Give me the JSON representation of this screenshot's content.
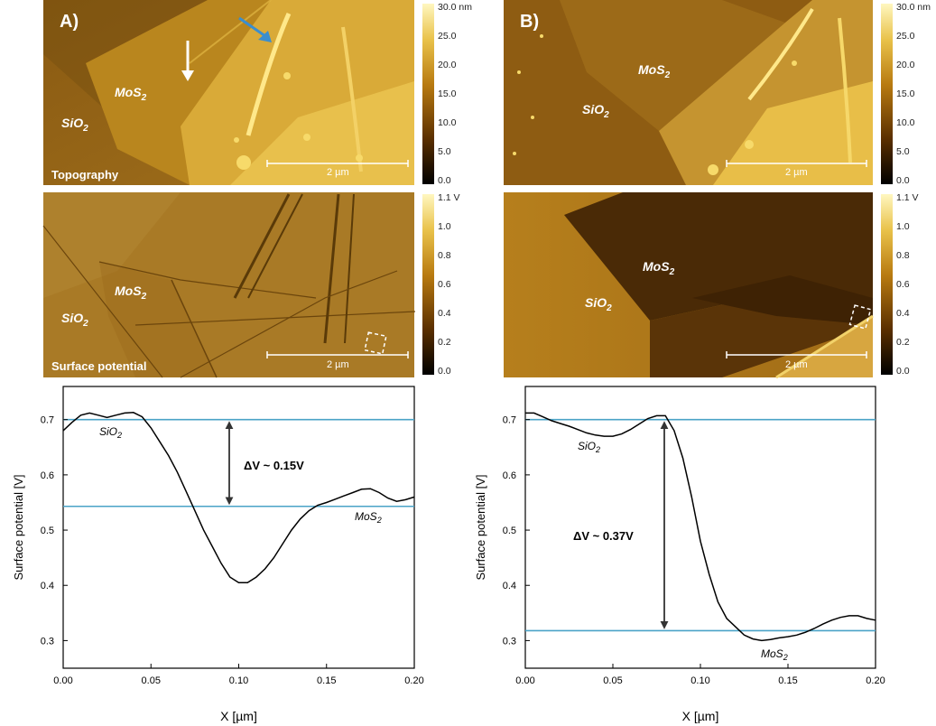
{
  "panels": {
    "A": {
      "panel_label": "A)",
      "topography": {
        "caption": "Topography",
        "scalebar": "2 µm",
        "mos2": "MoS",
        "mos2_sub": "2",
        "sio2": "SiO",
        "sio2_sub": "2",
        "colorbar_ticks": [
          "30.0 nm",
          "25.0",
          "20.0",
          "15.0",
          "10.0",
          "5.0",
          "0.0"
        ]
      },
      "potential": {
        "caption": "Surface potential",
        "scalebar": "2 µm",
        "mos2": "MoS",
        "mos2_sub": "2",
        "sio2": "SiO",
        "sio2_sub": "2",
        "colorbar_ticks": [
          "1.1 V",
          "1.0",
          "0.8",
          "0.6",
          "0.4",
          "0.2",
          "0.0"
        ]
      }
    },
    "B": {
      "panel_label": "B)",
      "topography": {
        "scalebar": "2 µm",
        "mos2": "MoS",
        "mos2_sub": "2",
        "sio2": "SiO",
        "sio2_sub": "2",
        "colorbar_ticks": [
          "30.0 nm",
          "25.0",
          "20.0",
          "15.0",
          "10.0",
          "5.0",
          "0.0"
        ]
      },
      "potential": {
        "scalebar": "2 µm",
        "mos2": "MoS",
        "mos2_sub": "2",
        "sio2": "SiO",
        "sio2_sub": "2",
        "colorbar_ticks": [
          "1.1 V",
          "1.0",
          "0.8",
          "0.6",
          "0.4",
          "0.2",
          "0.0"
        ]
      }
    }
  },
  "chart_data": [
    {
      "type": "line",
      "xlabel": "X [µm]",
      "ylabel": "Surface potential [V]",
      "xlim": [
        0.0,
        0.2
      ],
      "ylim": [
        0.25,
        0.76
      ],
      "xticks": [
        "0.00",
        "0.05",
        "0.10",
        "0.15",
        "0.20"
      ],
      "yticks": [
        "0.3",
        "0.4",
        "0.5",
        "0.6",
        "0.7"
      ],
      "annotation": "ΔV ~ 0.15V",
      "label_sio2": "SiO",
      "label_sio2_sub": "2",
      "label_mos2": "MoS",
      "label_mos2_sub": "2",
      "reference_lines": [
        0.7,
        0.543
      ],
      "x": [
        0.0,
        0.005,
        0.01,
        0.015,
        0.02,
        0.025,
        0.03,
        0.035,
        0.04,
        0.045,
        0.05,
        0.055,
        0.06,
        0.065,
        0.07,
        0.075,
        0.08,
        0.085,
        0.09,
        0.095,
        0.1,
        0.105,
        0.11,
        0.115,
        0.12,
        0.125,
        0.13,
        0.135,
        0.14,
        0.145,
        0.15,
        0.155,
        0.16,
        0.165,
        0.17,
        0.175,
        0.18,
        0.185,
        0.19,
        0.195,
        0.2
      ],
      "y": [
        0.68,
        0.695,
        0.708,
        0.712,
        0.708,
        0.704,
        0.708,
        0.712,
        0.713,
        0.705,
        0.685,
        0.66,
        0.635,
        0.605,
        0.57,
        0.535,
        0.5,
        0.47,
        0.44,
        0.415,
        0.405,
        0.405,
        0.415,
        0.43,
        0.45,
        0.475,
        0.5,
        0.52,
        0.535,
        0.545,
        0.55,
        0.556,
        0.562,
        0.568,
        0.574,
        0.575,
        0.568,
        0.558,
        0.552,
        0.555,
        0.56
      ]
    },
    {
      "type": "line",
      "xlabel": "X [µm]",
      "ylabel": "Surface potential [V]",
      "xlim": [
        0.0,
        0.2
      ],
      "ylim": [
        0.25,
        0.76
      ],
      "xticks": [
        "0.00",
        "0.05",
        "0.10",
        "0.15",
        "0.20"
      ],
      "yticks": [
        "0.3",
        "0.4",
        "0.5",
        "0.6",
        "0.7"
      ],
      "annotation": "ΔV ~ 0.37V",
      "label_sio2": "SiO",
      "label_sio2_sub": "2",
      "label_mos2": "MoS",
      "label_mos2_sub": "2",
      "reference_lines": [
        0.7,
        0.318
      ],
      "x": [
        0.0,
        0.005,
        0.01,
        0.015,
        0.02,
        0.025,
        0.03,
        0.035,
        0.04,
        0.045,
        0.05,
        0.055,
        0.06,
        0.065,
        0.07,
        0.075,
        0.08,
        0.085,
        0.09,
        0.095,
        0.1,
        0.105,
        0.11,
        0.115,
        0.12,
        0.125,
        0.13,
        0.135,
        0.14,
        0.145,
        0.15,
        0.155,
        0.16,
        0.165,
        0.17,
        0.175,
        0.18,
        0.185,
        0.19,
        0.195,
        0.2
      ],
      "y": [
        0.712,
        0.712,
        0.705,
        0.698,
        0.693,
        0.688,
        0.682,
        0.676,
        0.672,
        0.67,
        0.67,
        0.674,
        0.682,
        0.692,
        0.702,
        0.707,
        0.707,
        0.68,
        0.63,
        0.56,
        0.48,
        0.42,
        0.37,
        0.34,
        0.325,
        0.31,
        0.303,
        0.3,
        0.302,
        0.305,
        0.307,
        0.31,
        0.315,
        0.322,
        0.33,
        0.337,
        0.342,
        0.345,
        0.345,
        0.34,
        0.337
      ]
    }
  ]
}
